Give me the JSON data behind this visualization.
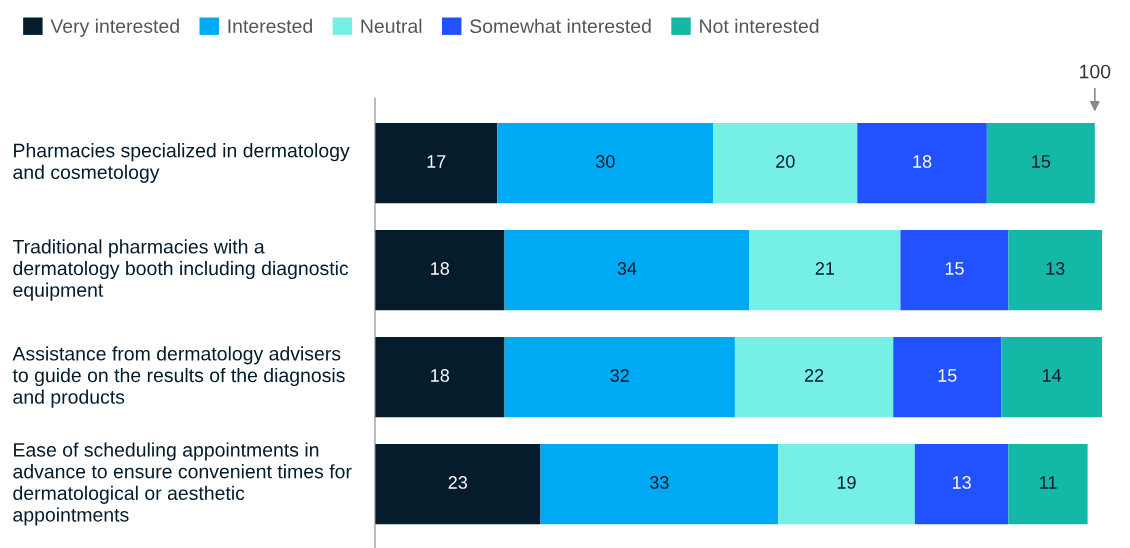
{
  "chart_data": {
    "type": "bar",
    "orientation": "horizontal",
    "stacked": true,
    "data_labels": true,
    "legend": "top left",
    "grid": false,
    "tick_labels": "y",
    "categories": [
      "Pharmacies specialized in dermatology and cosmetology",
      "Traditional pharmacies with a dermatology booth including diagnostic equipment",
      "Assistance from dermatology advisers to guide on the results of the diagnosis and products",
      "Ease of scheduling appointments in advance to ensure convenient times for dermatological or aesthetic appointments"
    ],
    "series": [
      {
        "name": "Very interested",
        "color": "#051c2c",
        "values": [
          17,
          18,
          18,
          23
        ]
      },
      {
        "name": "Interested",
        "color": "#00a9f4",
        "values": [
          30,
          34,
          32,
          33
        ]
      },
      {
        "name": "Neutral",
        "color": "#76f0e6",
        "values": [
          20,
          21,
          22,
          19
        ]
      },
      {
        "name": "Somewhat interested",
        "color": "#2251ff",
        "values": [
          18,
          15,
          15,
          13
        ]
      },
      {
        "name": "Not interested",
        "color": "#14b8a6",
        "values": [
          15,
          13,
          14,
          11
        ]
      }
    ],
    "annotations": [
      {
        "text": "100",
        "x": 100
      }
    ]
  }
}
